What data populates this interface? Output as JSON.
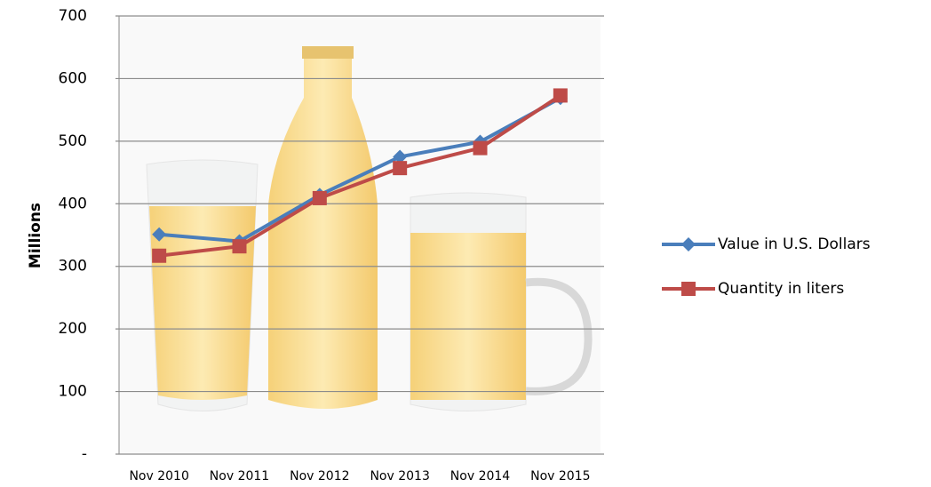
{
  "chart_data": {
    "type": "line",
    "y_label": "Millions",
    "categories": [
      "Nov 2010",
      "Nov 2011",
      "Nov 2012",
      "Nov 2013",
      "Nov 2014",
      "Nov 2015"
    ],
    "series": [
      {
        "name": "Value in U.S. Dollars",
        "color": "#4a7ebb",
        "marker": "diamond",
        "values": [
          351,
          340,
          414,
          475,
          499,
          569
        ]
      },
      {
        "name": "Quantity in liters",
        "color": "#be4b48",
        "marker": "square",
        "values": [
          317,
          332,
          409,
          457,
          489,
          573
        ]
      }
    ],
    "ylim": [
      0,
      700
    ],
    "yticks": [
      {
        "value": 0,
        "label": "-"
      },
      100,
      200,
      300,
      400,
      500,
      600,
      700
    ],
    "grid": true,
    "legend": "right"
  }
}
